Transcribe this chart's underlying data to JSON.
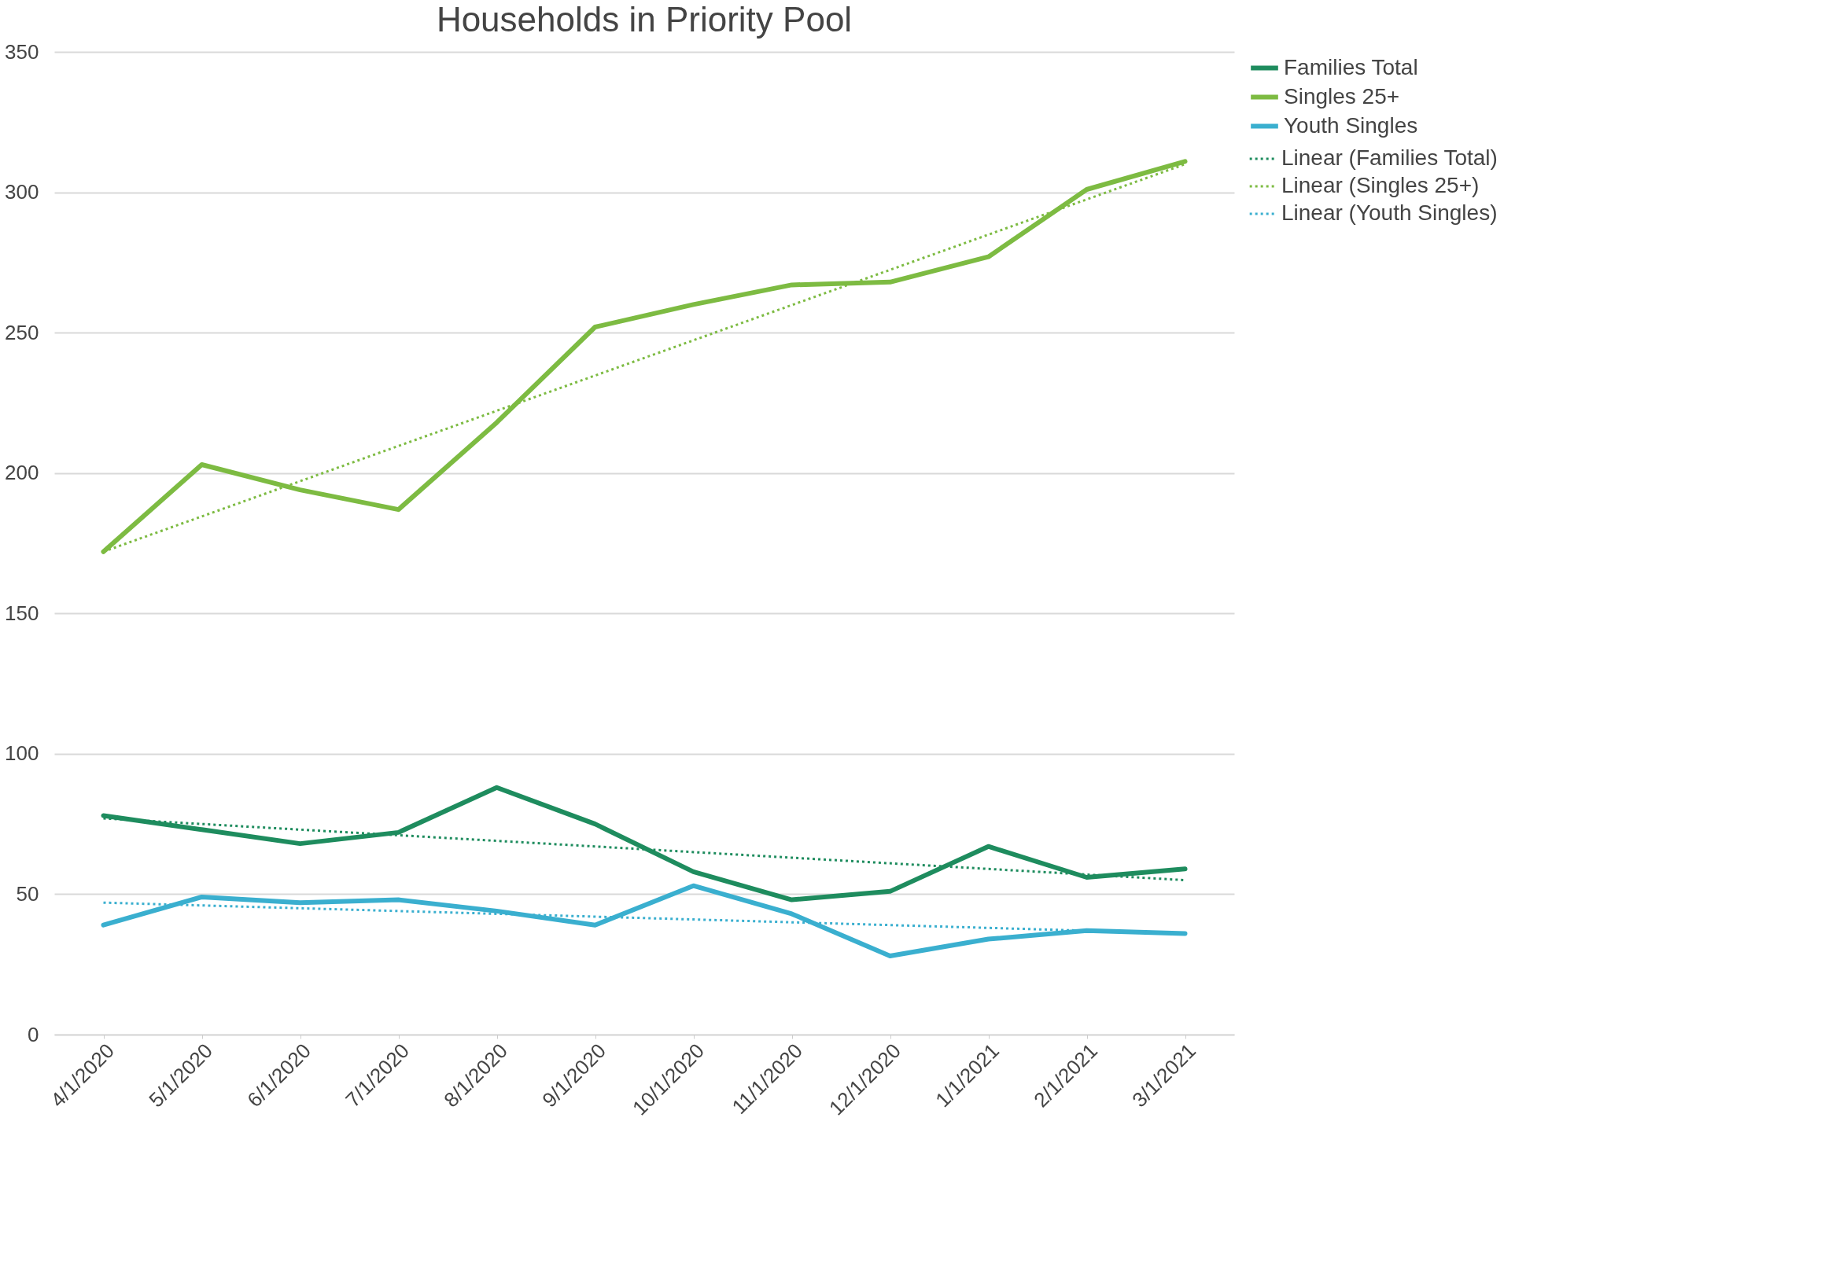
{
  "chart_data": {
    "type": "line",
    "title": "Households in Priority Pool",
    "categories": [
      "4/1/2020",
      "5/1/2020",
      "6/1/2020",
      "7/1/2020",
      "8/1/2020",
      "9/1/2020",
      "10/1/2020",
      "11/1/2020",
      "12/1/2020",
      "1/1/2021",
      "2/1/2021",
      "3/1/2021"
    ],
    "series": [
      {
        "name": "Families Total",
        "color": "#1e8c5e",
        "line_style": "solid",
        "values": [
          78,
          73,
          68,
          72,
          88,
          75,
          58,
          48,
          51,
          67,
          56,
          59
        ]
      },
      {
        "name": "Singles 25+",
        "color": "#7dbb42",
        "line_style": "solid",
        "values": [
          172,
          203,
          194,
          187,
          218,
          252,
          260,
          267,
          268,
          277,
          301,
          311
        ]
      },
      {
        "name": "Youth Singles",
        "color": "#3aafcf",
        "line_style": "solid",
        "values": [
          39,
          49,
          47,
          48,
          44,
          39,
          53,
          43,
          28,
          34,
          37,
          36
        ]
      },
      {
        "name": "Linear (Families Total)",
        "color": "#1e8c5e",
        "line_style": "dotted",
        "x": [
          "4/1/2020",
          "3/1/2021"
        ],
        "values": [
          77,
          55
        ]
      },
      {
        "name": "Linear (Singles 25+)",
        "color": "#7dbb42",
        "line_style": "dotted",
        "x": [
          "4/1/2020",
          "3/1/2021"
        ],
        "values": [
          172,
          310
        ]
      },
      {
        "name": "Linear (Youth Singles)",
        "color": "#3aafcf",
        "line_style": "dotted",
        "x": [
          "4/1/2020",
          "3/1/2021"
        ],
        "values": [
          47,
          36
        ]
      }
    ],
    "ylim": [
      0,
      350
    ],
    "yticks": [
      0,
      50,
      100,
      150,
      200,
      250,
      300,
      350
    ],
    "grid": "y",
    "legend": "right"
  }
}
